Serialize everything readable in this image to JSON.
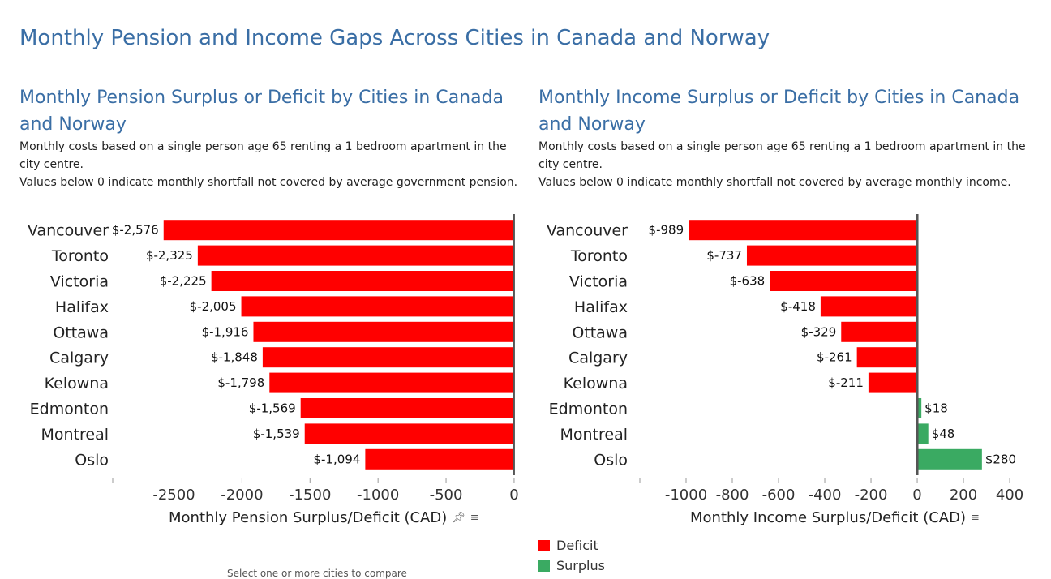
{
  "dashboard": {
    "title": "Monthly Pension and Income Gaps Across Cities in Canada and Norway",
    "footer_note": "Select one or more cities to compare"
  },
  "colors": {
    "deficit": "#ff0000",
    "surplus": "#3aaa62",
    "title": "#3a6ea5"
  },
  "legend": {
    "items": [
      {
        "label": "Deficit",
        "color": "#ff0000"
      },
      {
        "label": "Surplus",
        "color": "#3aaa62"
      }
    ]
  },
  "chart_data": [
    {
      "type": "bar",
      "orientation": "horizontal",
      "title": "Monthly Pension Surplus or Deficit by Cities in Canada and Norway",
      "subtitle_lines": [
        "Monthly costs based on a single person age 65 renting a 1 bedroom apartment in the city centre.",
        "Values below 0 indicate monthly shortfall not covered by average government pension."
      ],
      "xlabel": "Monthly Pension Surplus/Deficit (CAD)",
      "icons": [
        "pin-icon",
        "sort-icon"
      ],
      "categories": [
        "Vancouver",
        "Toronto",
        "Victoria",
        "Halifax",
        "Ottawa",
        "Calgary",
        "Kelowna",
        "Edmonton",
        "Montreal",
        "Oslo"
      ],
      "values": [
        -2576,
        -2325,
        -2225,
        -2005,
        -1916,
        -1848,
        -1798,
        -1569,
        -1539,
        -1094
      ],
      "data_labels": [
        "$-2,576",
        "$-2,325",
        "$-2,225",
        "$-2,005",
        "$-1,916",
        "$-1,848",
        "$-1,798",
        "$-1,569",
        "$-1,539",
        "$-1,094"
      ],
      "xlim": [
        -2950,
        60
      ],
      "ticks": [
        -2500,
        -2000,
        -1500,
        -1000,
        -500,
        0
      ],
      "tick_labels": [
        "-2500",
        "-2000",
        "-1500",
        "-1000",
        "-500",
        "0"
      ],
      "grid": false
    },
    {
      "type": "bar",
      "orientation": "horizontal",
      "title": "Monthly Income Surplus or Deficit by Cities in Canada and Norway",
      "subtitle_lines": [
        "Monthly costs based on a single person age 65 renting a 1 bedroom apartment in the city centre.",
        "Values below 0 indicate monthly shortfall not covered by average monthly income."
      ],
      "xlabel": "Monthly Income Surplus/Deficit (CAD)",
      "icons": [
        "sort-icon"
      ],
      "categories": [
        "Vancouver",
        "Toronto",
        "Victoria",
        "Halifax",
        "Ottawa",
        "Calgary",
        "Kelowna",
        "Edmonton",
        "Montreal",
        "Oslo"
      ],
      "values": [
        -989,
        -737,
        -638,
        -418,
        -329,
        -261,
        -211,
        18,
        48,
        280
      ],
      "data_labels": [
        "$-989",
        "$-737",
        "$-638",
        "$-418",
        "$-329",
        "$-261",
        "$-211",
        "$18",
        "$48",
        "$280"
      ],
      "xlim": [
        -1200,
        470
      ],
      "ticks": [
        -1000,
        -800,
        -600,
        -400,
        -200,
        0,
        200,
        400
      ],
      "tick_labels": [
        "-1000",
        "-800",
        "-600",
        "-400",
        "-200",
        "0",
        "200",
        "400"
      ],
      "grid": false
    }
  ]
}
